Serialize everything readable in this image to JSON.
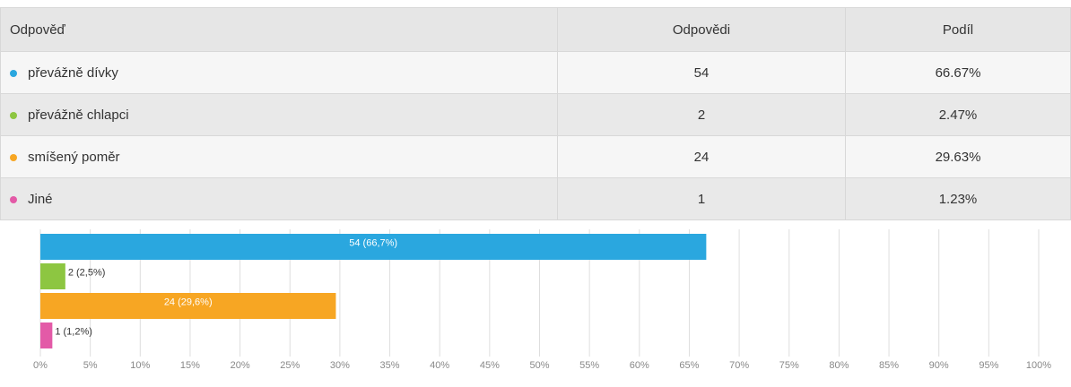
{
  "table": {
    "headers": [
      "Odpověď",
      "Odpovědi",
      "Podíl"
    ],
    "rows": [
      [
        "převážně dívky",
        "54",
        "66.67%"
      ],
      [
        "převážně chlapci",
        "2",
        "2.47%"
      ],
      [
        "smíšený poměr",
        "24",
        "29.63%"
      ],
      [
        "Jiné",
        "1",
        "1.23%"
      ]
    ]
  },
  "chart_data": {
    "type": "hbar",
    "values": [
      66.7,
      2.5,
      29.6,
      1.2
    ],
    "value_labels": [
      "54 (66,7%)",
      "2 (2,5%)",
      "24 (29,6%)",
      "1 (1,2%)"
    ],
    "colors": [
      "#2aa7df",
      "#8dc641",
      "#f7a623",
      "#e35aa7"
    ],
    "xlim": [
      0,
      100
    ],
    "xticks": [
      {
        "value": 0,
        "label": "0%"
      },
      {
        "value": 5,
        "label": "5%"
      },
      {
        "value": 10,
        "label": "10%"
      },
      {
        "value": 15,
        "label": "15%"
      },
      {
        "value": 20,
        "label": "20%"
      },
      {
        "value": 25,
        "label": "25%"
      },
      {
        "value": 30,
        "label": "30%"
      },
      {
        "value": 35,
        "label": "35%"
      },
      {
        "value": 40,
        "label": "40%"
      },
      {
        "value": 45,
        "label": "45%"
      },
      {
        "value": 50,
        "label": "50%"
      },
      {
        "value": 55,
        "label": "55%"
      },
      {
        "value": 60,
        "label": "60%"
      },
      {
        "value": 65,
        "label": "65%"
      },
      {
        "value": 70,
        "label": "70%"
      },
      {
        "value": 75,
        "label": "75%"
      },
      {
        "value": 80,
        "label": "80%"
      },
      {
        "value": 85,
        "label": "85%"
      },
      {
        "value": 90,
        "label": "90%"
      },
      {
        "value": 95,
        "label": "95%"
      },
      {
        "value": 100,
        "label": "100%"
      }
    ],
    "grid": true
  }
}
